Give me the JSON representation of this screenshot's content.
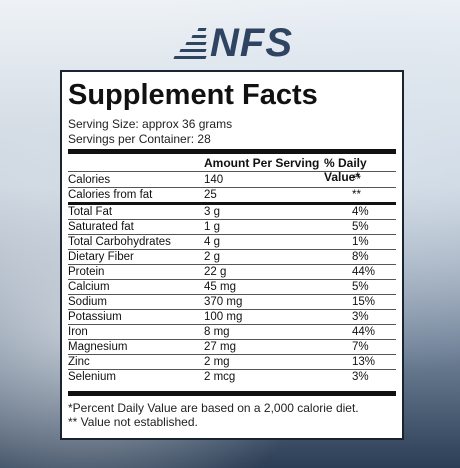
{
  "brand": {
    "logo_text": "NFS"
  },
  "label": {
    "title": "Supplement Facts",
    "serving_size": "Serving Size: approx 36 grams",
    "servings_per_container": "Servings per Container: 28",
    "col_amount": "Amount Per Serving",
    "col_dv": "% Daily Value*",
    "rows": [
      {
        "name": "Calories",
        "amount": "140",
        "dv": "**"
      },
      {
        "name": "Calories from fat",
        "amount": "25",
        "dv": "**"
      },
      {
        "name": "Total Fat",
        "amount": "3 g",
        "dv": "4%"
      },
      {
        "name": "Saturated fat",
        "amount": "1 g",
        "dv": "5%"
      },
      {
        "name": "Total Carbohydrates",
        "amount": "4 g",
        "dv": "1%"
      },
      {
        "name": "Dietary Fiber",
        "amount": "2 g",
        "dv": "8%"
      },
      {
        "name": "Protein",
        "amount": "22 g",
        "dv": "44%"
      },
      {
        "name": "Calcium",
        "amount": "45 mg",
        "dv": "5%"
      },
      {
        "name": "Sodium",
        "amount": "370 mg",
        "dv": "15%"
      },
      {
        "name": "Potassium",
        "amount": "100 mg",
        "dv": "3%"
      },
      {
        "name": "Iron",
        "amount": "8 mg",
        "dv": "44%"
      },
      {
        "name": "Magnesium",
        "amount": "27 mg",
        "dv": "7%"
      },
      {
        "name": "Zinc",
        "amount": "2 mg",
        "dv": "13%"
      },
      {
        "name": "Selenium",
        "amount": "2 mcg",
        "dv": "3%"
      }
    ],
    "footnote_1": "*Percent Daily Value are based on a 2,000 calorie diet.",
    "footnote_2": "** Value not established."
  }
}
